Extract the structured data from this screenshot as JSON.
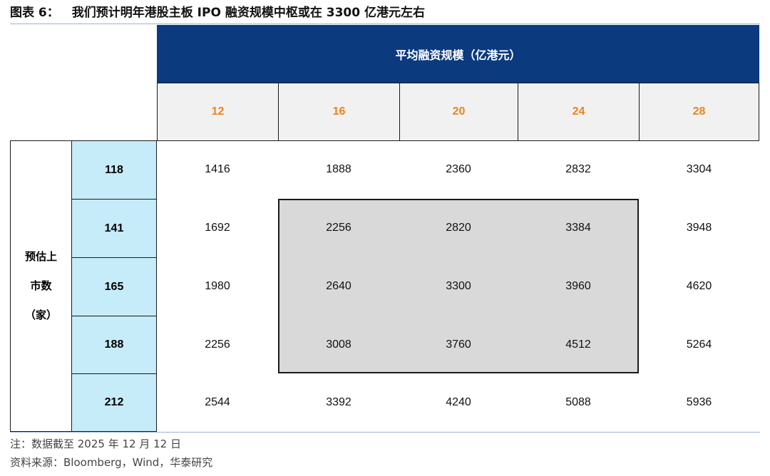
{
  "title": {
    "figure_number": "图表 6：",
    "text": "我们预计明年港股主板 IPO 融资规模中枢或在 3300 亿港元左右"
  },
  "chart_data": {
    "type": "table",
    "column_header": "平均融资规模（亿港元）",
    "row_header_lines": [
      "预估上",
      "市数",
      "（家）"
    ],
    "columns": [
      "12",
      "16",
      "20",
      "24",
      "28"
    ],
    "rows": [
      "118",
      "141",
      "165",
      "188",
      "212"
    ],
    "values": [
      [
        1416,
        1888,
        2360,
        2832,
        3304
      ],
      [
        1692,
        2256,
        2820,
        3384,
        3948
      ],
      [
        1980,
        2640,
        3300,
        3960,
        4620
      ],
      [
        2256,
        3008,
        3760,
        4512,
        5264
      ],
      [
        2544,
        3392,
        4240,
        5088,
        5936
      ]
    ],
    "highlight": {
      "rows": [
        1,
        3
      ],
      "cols": [
        1,
        3
      ]
    },
    "colors": {
      "header_bg": "#0b3a7e",
      "column_label": "#f0821e",
      "row_label_bg": "#c6ebf9",
      "highlight_bg": "#d9d9d9"
    }
  },
  "notes": {
    "note": "注：数据截至 2025 年 12 月 12 日",
    "source": "资料来源：Bloomberg，Wind，华泰研究"
  }
}
